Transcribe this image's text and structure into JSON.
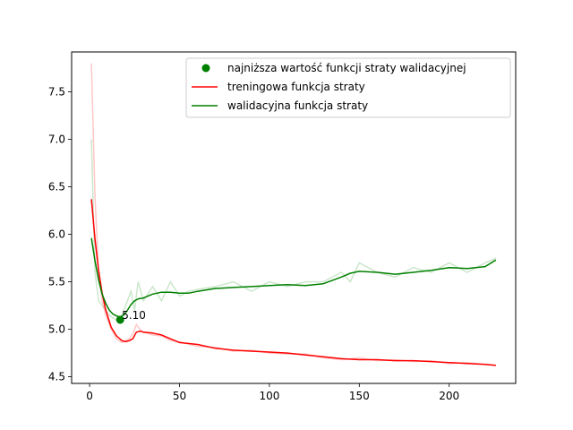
{
  "chart_data": {
    "type": "line",
    "title": "",
    "xlabel": "",
    "ylabel": "",
    "xlim": [
      -10,
      237
    ],
    "ylim": [
      4.43,
      7.92
    ],
    "xticks": [
      0,
      50,
      100,
      150,
      200
    ],
    "yticks": [
      4.5,
      5.0,
      5.5,
      6.0,
      6.5,
      7.0,
      7.5
    ],
    "xtick_labels": [
      "0",
      "50",
      "100",
      "150",
      "200"
    ],
    "ytick_labels": [
      "4.5",
      "5.0",
      "5.5",
      "6.0",
      "6.5",
      "7.0",
      "7.5"
    ],
    "grid": false,
    "legend_position": "upper-right",
    "legend": [
      {
        "label": "najniższa wartość funkcji straty walidacyjnej",
        "kind": "marker",
        "color": "#008000"
      },
      {
        "label": "treningowa funkcja straty",
        "kind": "line",
        "color": "#ff0000"
      },
      {
        "label": "walidacyjna funkcja straty",
        "kind": "line",
        "color": "#008000"
      }
    ],
    "series": [
      {
        "name": "treningowa funkcja straty",
        "color": "#ff0000",
        "raw_color": "#ff0000",
        "raw_opacity": 0.22,
        "x": [
          1,
          3,
          5,
          7,
          9,
          12,
          15,
          18,
          20,
          22,
          24,
          26,
          28,
          30,
          35,
          40,
          45,
          50,
          60,
          70,
          80,
          90,
          100,
          110,
          120,
          130,
          140,
          150,
          160,
          170,
          180,
          190,
          200,
          210,
          220,
          226
        ],
        "smooth": [
          6.37,
          5.95,
          5.62,
          5.38,
          5.2,
          5.02,
          4.93,
          4.88,
          4.87,
          4.88,
          4.9,
          4.97,
          4.98,
          4.97,
          4.96,
          4.94,
          4.9,
          4.86,
          4.84,
          4.8,
          4.78,
          4.77,
          4.76,
          4.75,
          4.73,
          4.71,
          4.69,
          4.68,
          4.68,
          4.67,
          4.67,
          4.66,
          4.65,
          4.64,
          4.63,
          4.62
        ],
        "raw": [
          7.8,
          6.4,
          5.6,
          5.3,
          5.15,
          5.0,
          4.9,
          4.86,
          4.88,
          4.9,
          4.95,
          5.05,
          5.0,
          4.97,
          4.94,
          4.93,
          4.88,
          4.87,
          4.82,
          4.81,
          4.77,
          4.78,
          4.75,
          4.74,
          4.74,
          4.7,
          4.68,
          4.7,
          4.67,
          4.68,
          4.66,
          4.67,
          4.64,
          4.65,
          4.63,
          4.62
        ]
      },
      {
        "name": "walidacyjna funkcja straty",
        "color": "#008000",
        "raw_color": "#008000",
        "raw_opacity": 0.2,
        "x": [
          1,
          3,
          5,
          7,
          9,
          11,
          13,
          15,
          17,
          19,
          21,
          23,
          25,
          27,
          30,
          35,
          40,
          45,
          50,
          55,
          60,
          70,
          80,
          90,
          100,
          110,
          120,
          130,
          140,
          145,
          150,
          160,
          170,
          180,
          190,
          200,
          210,
          220,
          226
        ],
        "smooth": [
          5.96,
          5.72,
          5.52,
          5.37,
          5.27,
          5.2,
          5.16,
          5.14,
          5.13,
          5.15,
          5.2,
          5.26,
          5.3,
          5.32,
          5.33,
          5.37,
          5.39,
          5.39,
          5.38,
          5.38,
          5.4,
          5.43,
          5.44,
          5.45,
          5.46,
          5.47,
          5.46,
          5.48,
          5.55,
          5.59,
          5.61,
          5.6,
          5.58,
          5.6,
          5.62,
          5.65,
          5.64,
          5.66,
          5.73
        ],
        "raw": [
          7.0,
          5.6,
          5.3,
          5.25,
          5.2,
          5.15,
          5.12,
          5.1,
          5.1,
          5.2,
          5.3,
          5.4,
          5.2,
          5.5,
          5.3,
          5.45,
          5.3,
          5.5,
          5.35,
          5.4,
          5.42,
          5.45,
          5.5,
          5.4,
          5.5,
          5.45,
          5.5,
          5.5,
          5.6,
          5.5,
          5.7,
          5.6,
          5.55,
          5.65,
          5.6,
          5.7,
          5.6,
          5.7,
          5.75
        ]
      }
    ],
    "marker": {
      "x": 17,
      "y": 5.1,
      "color": "#008000"
    },
    "annotation": {
      "text": "5.10",
      "x": 17,
      "y": 5.1
    }
  }
}
